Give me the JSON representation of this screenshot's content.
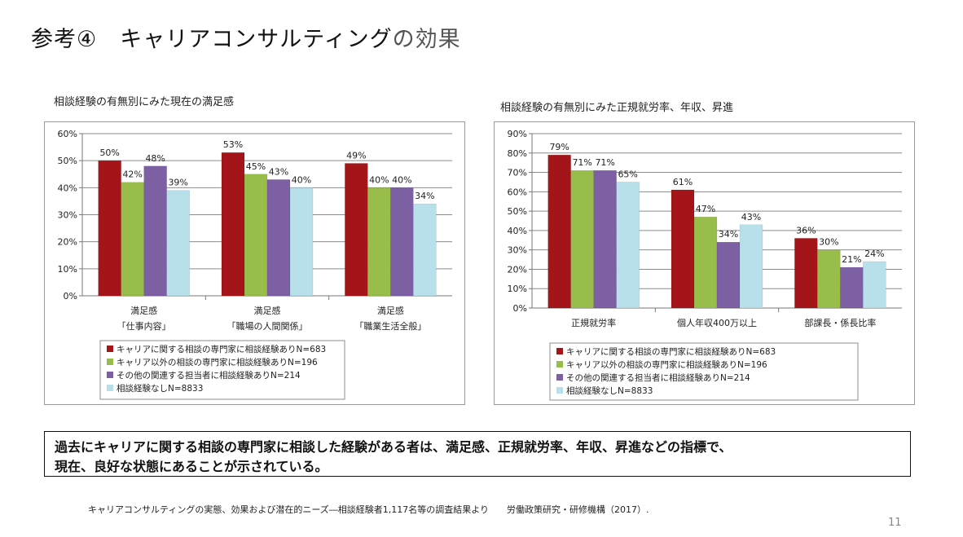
{
  "slide": {
    "title_main": "参考④　キャリアコンサルティング",
    "title_suffix": "の効果",
    "conclusion_line1": "過去にキャリアに関する相談の専門家に相談した経験がある者は、満足感、正規就労率、年収、昇進などの指標で、",
    "conclusion_line2": "現在、良好な状態にあることが示されている。",
    "source": "キャリアコンサルティングの実態、効果および潜在的ニーズ―相談経験者1,117名等の調査結果より　　労働政策研究・研修機構（2017）.",
    "page_number": "11"
  },
  "colors": {
    "series1": "#a31518",
    "series2": "#98bd4b",
    "series3": "#7d5fa3",
    "series4": "#b8e0ea"
  },
  "chart_data": [
    {
      "type": "bar",
      "title": "相談経験の有無別にみた現在の満足感",
      "categories": [
        [
          "満足感",
          "「仕事内容」"
        ],
        [
          "満足感",
          "「職場の人間関係」"
        ],
        [
          "満足感",
          "「職業生活全般」"
        ]
      ],
      "yticks": [
        "0%",
        "10%",
        "20%",
        "30%",
        "40%",
        "50%",
        "60%"
      ],
      "ylim": [
        0,
        60
      ],
      "grid": true,
      "legend_position": "bottom",
      "series": [
        {
          "name": "キャリアに関する相談の専門家に相談経験ありN=683",
          "values": [
            50,
            53,
            49
          ],
          "labels": [
            "50%",
            "53%",
            "49%"
          ]
        },
        {
          "name": "キャリア以外の相談の専門家に相談経験ありN=196",
          "values": [
            42,
            45,
            40
          ],
          "labels": [
            "42%",
            "45%",
            "40%"
          ]
        },
        {
          "name": "その他の関連する担当者に相談経験ありN=214",
          "values": [
            48,
            43,
            40
          ],
          "labels": [
            "48%",
            "43%",
            "40%"
          ]
        },
        {
          "name": "相談経験なしN=8833",
          "values": [
            39,
            40,
            34
          ],
          "labels": [
            "39%",
            "40%",
            "34%"
          ]
        }
      ]
    },
    {
      "type": "bar",
      "title": "相談経験の有無別にみた正規就労率、年収、昇進",
      "categories": [
        [
          "正規就労率"
        ],
        [
          "個人年収400万以上"
        ],
        [
          "部課長・係長比率"
        ]
      ],
      "yticks": [
        "0%",
        "10%",
        "20%",
        "30%",
        "40%",
        "50%",
        "60%",
        "70%",
        "80%",
        "90%"
      ],
      "ylim": [
        0,
        90
      ],
      "grid": true,
      "legend_position": "bottom",
      "series": [
        {
          "name": "キャリアに関する相談の専門家に相談経験ありN=683",
          "values": [
            79,
            61,
            36
          ],
          "labels": [
            "79%",
            "61%",
            "36%"
          ]
        },
        {
          "name": "キャリア以外の相談の専門家に相談経験ありN=196",
          "values": [
            71,
            47,
            30
          ],
          "labels": [
            "71%",
            "47%",
            "30%"
          ]
        },
        {
          "name": "その他の関連する担当者に相談経験ありN=214",
          "values": [
            71,
            34,
            21
          ],
          "labels": [
            "71%",
            "34%",
            "21%"
          ]
        },
        {
          "name": "相談経験なしN=8833",
          "values": [
            65,
            43,
            24
          ],
          "labels": [
            "65%",
            "43%",
            "24%"
          ]
        }
      ]
    }
  ]
}
